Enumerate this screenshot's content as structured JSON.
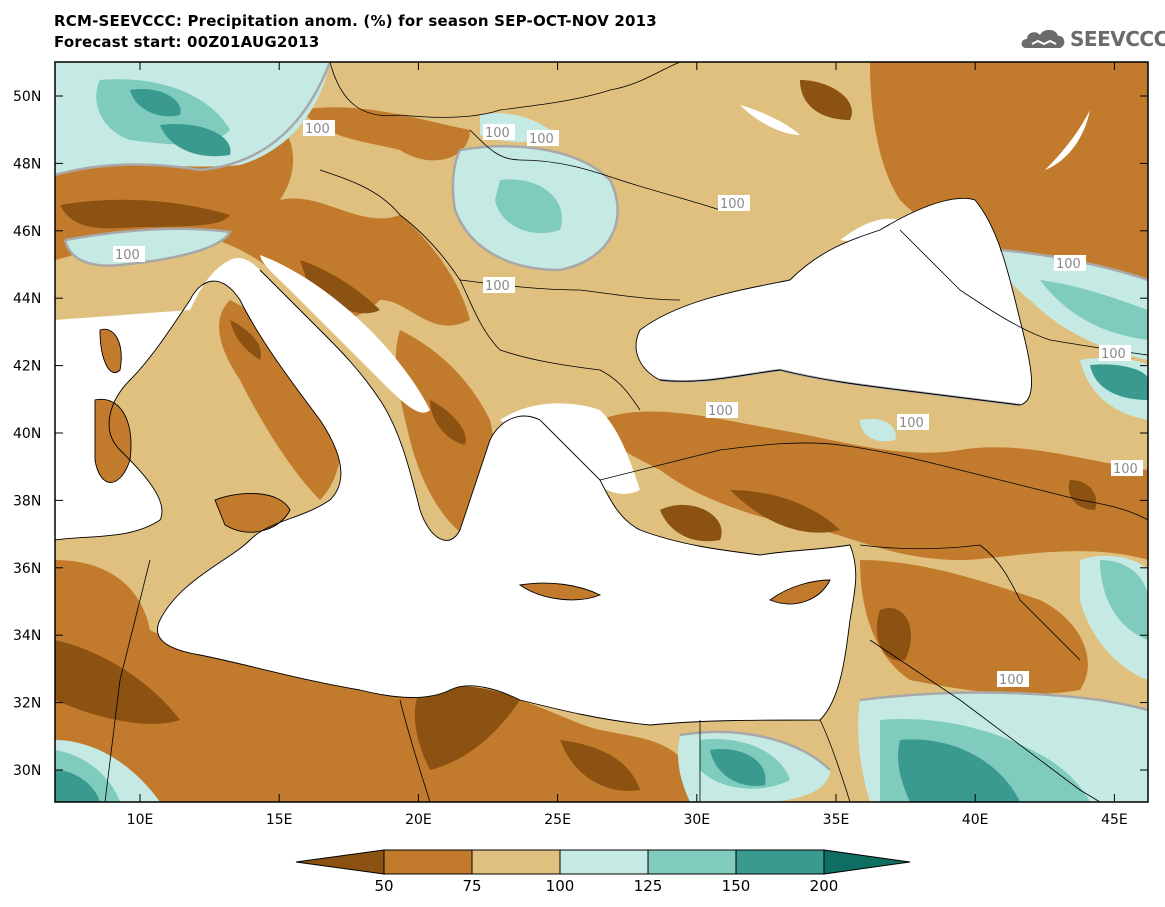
{
  "header": {
    "title_line1": "RCM-SEEVCCC: Precipitation anom. (%) for season SEP-OCT-NOV 2013",
    "title_line2": "Forecast start: 00Z01AUG2013",
    "logo_text": "SEEVCCC"
  },
  "axes": {
    "lat_labels": [
      "50N",
      "48N",
      "46N",
      "44N",
      "42N",
      "40N",
      "38N",
      "36N",
      "34N",
      "32N",
      "30N"
    ],
    "lon_labels": [
      "10E",
      "15E",
      "20E",
      "25E",
      "30E",
      "35E",
      "40E",
      "45E"
    ]
  },
  "contour_labels": [
    "100",
    "100",
    "100",
    "100",
    "100",
    "100",
    "100",
    "100",
    "100",
    "100",
    "100",
    "100"
  ],
  "colorbar": {
    "labels": [
      "50",
      "75",
      "100",
      "125",
      "150",
      "200"
    ],
    "colors": [
      "#8b5211",
      "#c27b2c",
      "#dfc07e",
      "#c5eae4",
      "#7fcbbd",
      "#3a9a8f",
      "#0e6e62"
    ]
  },
  "palette": {
    "very_dry": "#8b5211",
    "dry": "#c27b2c",
    "slightly_dry": "#dfc07e",
    "slightly_wet": "#c5eae4",
    "wet": "#7fcbbd",
    "very_wet": "#3a9a8f",
    "extreme_wet": "#0e6e62",
    "sea": "#ffffff"
  }
}
